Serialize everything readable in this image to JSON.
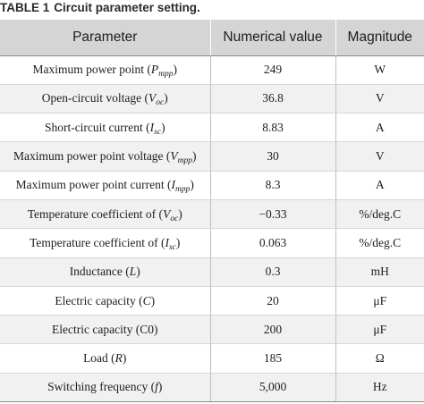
{
  "caption": {
    "label": "TABLE 1",
    "title": "Circuit parameter setting."
  },
  "table": {
    "headers": [
      "Parameter",
      "Numerical value",
      "Magnitude"
    ],
    "rows": [
      {
        "name": "Maximum power point (",
        "sym": "P",
        "sub": "mpp",
        "close": ")",
        "value": "249",
        "unit": "W"
      },
      {
        "name": "Open-circuit voltage (",
        "sym": "V",
        "sub": "oc",
        "close": ")",
        "value": "36.8",
        "unit": "V"
      },
      {
        "name": "Short-circuit current (",
        "sym": "I",
        "sub": "sc",
        "close": ")",
        "value": "8.83",
        "unit": "A"
      },
      {
        "name": "Maximum power point voltage (",
        "sym": "V",
        "sub": "mpp",
        "close": ")",
        "value": "30",
        "unit": "V"
      },
      {
        "name": "Maximum power point current (",
        "sym": "I",
        "sub": "mpp",
        "close": ")",
        "value": "8.3",
        "unit": "A"
      },
      {
        "name": "Temperature coefficient of (",
        "sym": "V",
        "sub": "oc",
        "close": ")",
        "value": "−0.33",
        "unit": "%/deg.C"
      },
      {
        "name": "Temperature coefficient of (",
        "sym": "I",
        "sub": "sc",
        "close": ")",
        "value": "0.063",
        "unit": "%/deg.C"
      },
      {
        "name": "Inductance (",
        "sym": "L",
        "sub": "",
        "close": ")",
        "value": "0.3",
        "unit": "mH"
      },
      {
        "name": "Electric capacity (",
        "sym": "C",
        "sub": "",
        "close": ")",
        "value": "20",
        "unit": "μF"
      },
      {
        "name": "Electric capacity (C0)",
        "sym": "",
        "sub": "",
        "close": "",
        "value": "200",
        "unit": "μF"
      },
      {
        "name": "Load (",
        "sym": "R",
        "sub": "",
        "close": ")",
        "value": "185",
        "unit": "Ω"
      },
      {
        "name": "Switching frequency (",
        "sym": "f",
        "sub": "",
        "close": ")",
        "value": "5,000",
        "unit": "Hz"
      }
    ]
  }
}
